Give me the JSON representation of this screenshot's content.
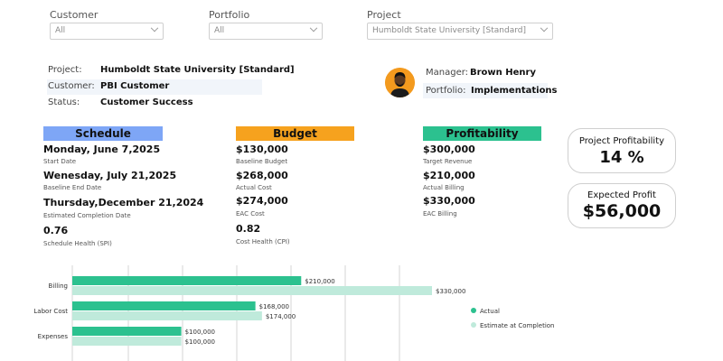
{
  "filters": [
    {
      "label": "Customer",
      "value": "All"
    },
    {
      "label": "Portfolio",
      "value": "All"
    },
    {
      "label": "Project",
      "value": "Humboldt State University [Standard]"
    }
  ],
  "project_info": {
    "project_label": "Project:",
    "project_value": "Humboldt State University [Standard]",
    "customer_label": "Customer:",
    "customer_value": "PBI Customer",
    "status_label": "Status:",
    "status_value": "Customer Success",
    "manager_label": "Manager:",
    "manager_value": "Brown Henry",
    "portfolio_label": "Portfolio:",
    "portfolio_value": "Implementations"
  },
  "schedule": {
    "header": "Schedule",
    "color": "#7ea6f6",
    "metrics": [
      {
        "value": "Monday, June 7,2025",
        "label": "Start Date"
      },
      {
        "value": "Wenesday, July 21,2025",
        "label": "Baseline End Date"
      },
      {
        "value": "Thursday,December 21,2024",
        "label": "Estimated Completion Date"
      },
      {
        "value": "0.76",
        "label": "Schedule Health (SPI)"
      }
    ]
  },
  "budget": {
    "header": "Budget",
    "color": "#f6a21e",
    "metrics": [
      {
        "value": "$130,000",
        "label": "Baseline Budget"
      },
      {
        "value": "$268,000",
        "label": "Actual Cost"
      },
      {
        "value": "$274,000",
        "label": "EAC Cost"
      },
      {
        "value": "0.82",
        "label": "Cost Health (CPI)"
      }
    ]
  },
  "profitability": {
    "header": "Profitability",
    "color": "#2cc18f",
    "metrics": [
      {
        "value": "$300,000",
        "label": "Target Revenue"
      },
      {
        "value": "$210,000",
        "label": "Actual Billing"
      },
      {
        "value": "$330,000",
        "label": "EAC Billing"
      }
    ]
  },
  "kpis": {
    "project_profitability_title": "Project Profitability",
    "project_profitability_value": "14 %",
    "expected_profit_title": "Expected Profit",
    "expected_profit_value": "$56,000"
  },
  "chart_data": {
    "type": "bar",
    "orientation": "horizontal",
    "categories": [
      "Billing",
      "Labor Cost",
      "Expenses"
    ],
    "series": [
      {
        "name": "Actual",
        "color": "#2cc18f",
        "values": [
          210000,
          168000,
          100000
        ],
        "labels": [
          "$210,000",
          "$168,000",
          "$100,000"
        ]
      },
      {
        "name": "Estimate at Completion",
        "color": "#bfeadb",
        "values": [
          330000,
          174000,
          100000
        ],
        "labels": [
          "$330,000",
          "$174,000",
          "$100,000"
        ]
      }
    ],
    "xlim": [
      0,
      350000
    ],
    "grid": true,
    "legend": "right"
  }
}
